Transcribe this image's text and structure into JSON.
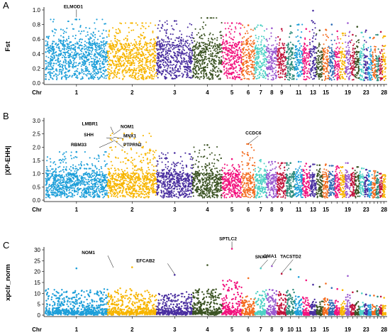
{
  "chart_data": [
    {
      "panel_label": "A",
      "type": "scatter",
      "style": "manhattan",
      "ylabel": "Fst",
      "xlabel": "Chr",
      "ylim": [
        0,
        1.0
      ],
      "yticks": [
        "0.0",
        "0.2",
        "0.4",
        "0.6",
        "0.8",
        "1.0"
      ],
      "chromosome_ticks": [
        "1",
        "2",
        "3",
        "4",
        "5",
        "6",
        "7",
        "8",
        "9",
        "11",
        "13",
        "15",
        "19",
        "23",
        "28"
      ],
      "signal_profile": {
        "chromosome_medians": [
          0.31,
          0.31,
          0.31,
          0.31,
          0.31,
          0.31,
          0.29,
          0.28,
          0.27,
          0.28,
          0.26,
          0.27,
          0.29,
          0.25,
          0.26,
          0.24,
          0.25,
          0.24,
          0.25,
          0.23,
          0.24,
          0.23,
          0.22,
          0.22,
          0.21,
          0.21,
          0.21,
          0.2
        ],
        "chromosome_peaks": [
          0.87,
          0.82,
          0.85,
          0.89,
          0.82,
          0.79,
          0.79,
          0.75,
          0.74,
          0.78,
          0.8,
          0.74,
          0.99,
          0.72,
          0.73,
          0.8,
          0.71,
          0.68,
          0.82,
          0.66,
          0.77,
          0.69,
          0.72,
          0.62,
          0.62,
          0.66,
          0.7,
          0.64
        ]
      },
      "annotations": [
        {
          "label": "ELMOD1",
          "chr": "1",
          "value": 0.89
        }
      ]
    },
    {
      "panel_label": "B",
      "type": "scatter",
      "style": "manhattan",
      "ylabel": "|XP-EHH|",
      "xlabel": "Chr",
      "ylim": [
        0,
        3.0
      ],
      "yticks": [
        "0.0",
        "0.5",
        "1.0",
        "1.5",
        "2.0",
        "2.5",
        "3.0"
      ],
      "chromosome_ticks": [
        "1",
        "2",
        "3",
        "4",
        "5",
        "6",
        "7",
        "8",
        "9",
        "11",
        "13",
        "15",
        "19",
        "23",
        "28"
      ],
      "signal_profile": {
        "chromosome_medians": [
          0.58,
          0.58,
          0.58,
          0.58,
          0.58,
          0.58,
          0.57,
          0.57,
          0.57,
          0.57,
          0.56,
          0.56,
          0.56,
          0.56,
          0.56,
          0.55,
          0.55,
          0.55,
          0.55,
          0.55,
          0.54,
          0.54,
          0.54,
          0.54,
          0.53,
          0.53,
          0.53,
          0.53
        ],
        "chromosome_peaks": [
          1.82,
          2.52,
          1.78,
          2.08,
          1.55,
          2.12,
          1.52,
          1.45,
          1.4,
          1.4,
          1.45,
          1.38,
          1.35,
          1.32,
          1.35,
          1.3,
          1.28,
          1.25,
          1.4,
          1.2,
          1.25,
          1.2,
          1.15,
          1.1,
          1.1,
          1.05,
          1.0,
          0.95
        ]
      },
      "annotations": [
        {
          "label": "LMBR1",
          "chr": "2",
          "value": 2.5
        },
        {
          "label": "SHH",
          "chr": "2",
          "value": 2.3
        },
        {
          "label": "RBM33",
          "chr": "2",
          "value": 2.2
        },
        {
          "label": "NOM1",
          "chr": "2",
          "value": 2.45
        },
        {
          "label": "MNX1",
          "chr": "2",
          "value": 2.35
        },
        {
          "label": "PTPRN2",
          "chr": "2",
          "value": 2.25
        },
        {
          "label": "CCDC6",
          "chr": "6",
          "value": 2.1
        }
      ]
    },
    {
      "panel_label": "C",
      "type": "scatter",
      "style": "manhattan",
      "ylabel": "xpclr_norm",
      "xlabel": "Chr",
      "ylim": [
        0,
        30
      ],
      "yticks": [
        "0",
        "5",
        "10",
        "15",
        "20",
        "25",
        "30"
      ],
      "chromosome_ticks": [
        "1",
        "2",
        "3",
        "4",
        "5",
        "6",
        "7",
        "8",
        "9",
        "10",
        "11",
        "13",
        "15",
        "19",
        "23",
        "28"
      ],
      "signal_profile": {
        "chromosome_medians": [
          1.2,
          1.2,
          1.1,
          1.1,
          1.0,
          1.0,
          1.0,
          1.0,
          1.0,
          1.0,
          0.9,
          0.9,
          0.9,
          0.9,
          0.9,
          0.9,
          0.9,
          0.9,
          0.8,
          0.8,
          0.8,
          0.8,
          0.8,
          0.8,
          0.8,
          0.8,
          0.8,
          0.8
        ],
        "chromosome_peaks": [
          21.5,
          22.0,
          18.5,
          23.0,
          30.5,
          17.0,
          21.5,
          22.5,
          19.0,
          21.0,
          17.5,
          16.0,
          14.0,
          13.0,
          14.5,
          12.5,
          12.0,
          11.5,
          18.0,
          10.5,
          11.0,
          10.0,
          9.5,
          9.0,
          9.0,
          8.5,
          8.5,
          8.0
        ]
      },
      "annotations": [
        {
          "label": "NOM1",
          "chr": "2",
          "value": 21.5
        },
        {
          "label": "EFCAB2",
          "chr": "3",
          "value": 18.5
        },
        {
          "label": "SPTLC2",
          "chr": "5",
          "value": 30.5
        },
        {
          "label": "SNX4",
          "chr": "7",
          "value": 21.5
        },
        {
          "label": "OMA1",
          "chr": "8",
          "value": 22.5
        },
        {
          "label": "TACSTD2",
          "chr": "9",
          "value": 19.0
        }
      ]
    }
  ],
  "colors": {
    "chromosomes": [
      "#1e9fd9",
      "#f7b500",
      "#4a2fa0",
      "#3b5323",
      "#f2137e",
      "#f36d21",
      "#4ed1c5",
      "#9b59d0",
      "#c0143c",
      "#2a8a7a",
      "#1e9fd9",
      "#f2137e",
      "#4a2fa0",
      "#3b5323",
      "#f36d21",
      "#2d6bb5",
      "#f2137e",
      "#f7b500",
      "#9b59d0",
      "#c0143c",
      "#3b5323",
      "#4ed1c5",
      "#4a2fa0",
      "#1e9fd9",
      "#f36d21",
      "#2a8a7a",
      "#c0143c",
      "#f7b500"
    ]
  }
}
